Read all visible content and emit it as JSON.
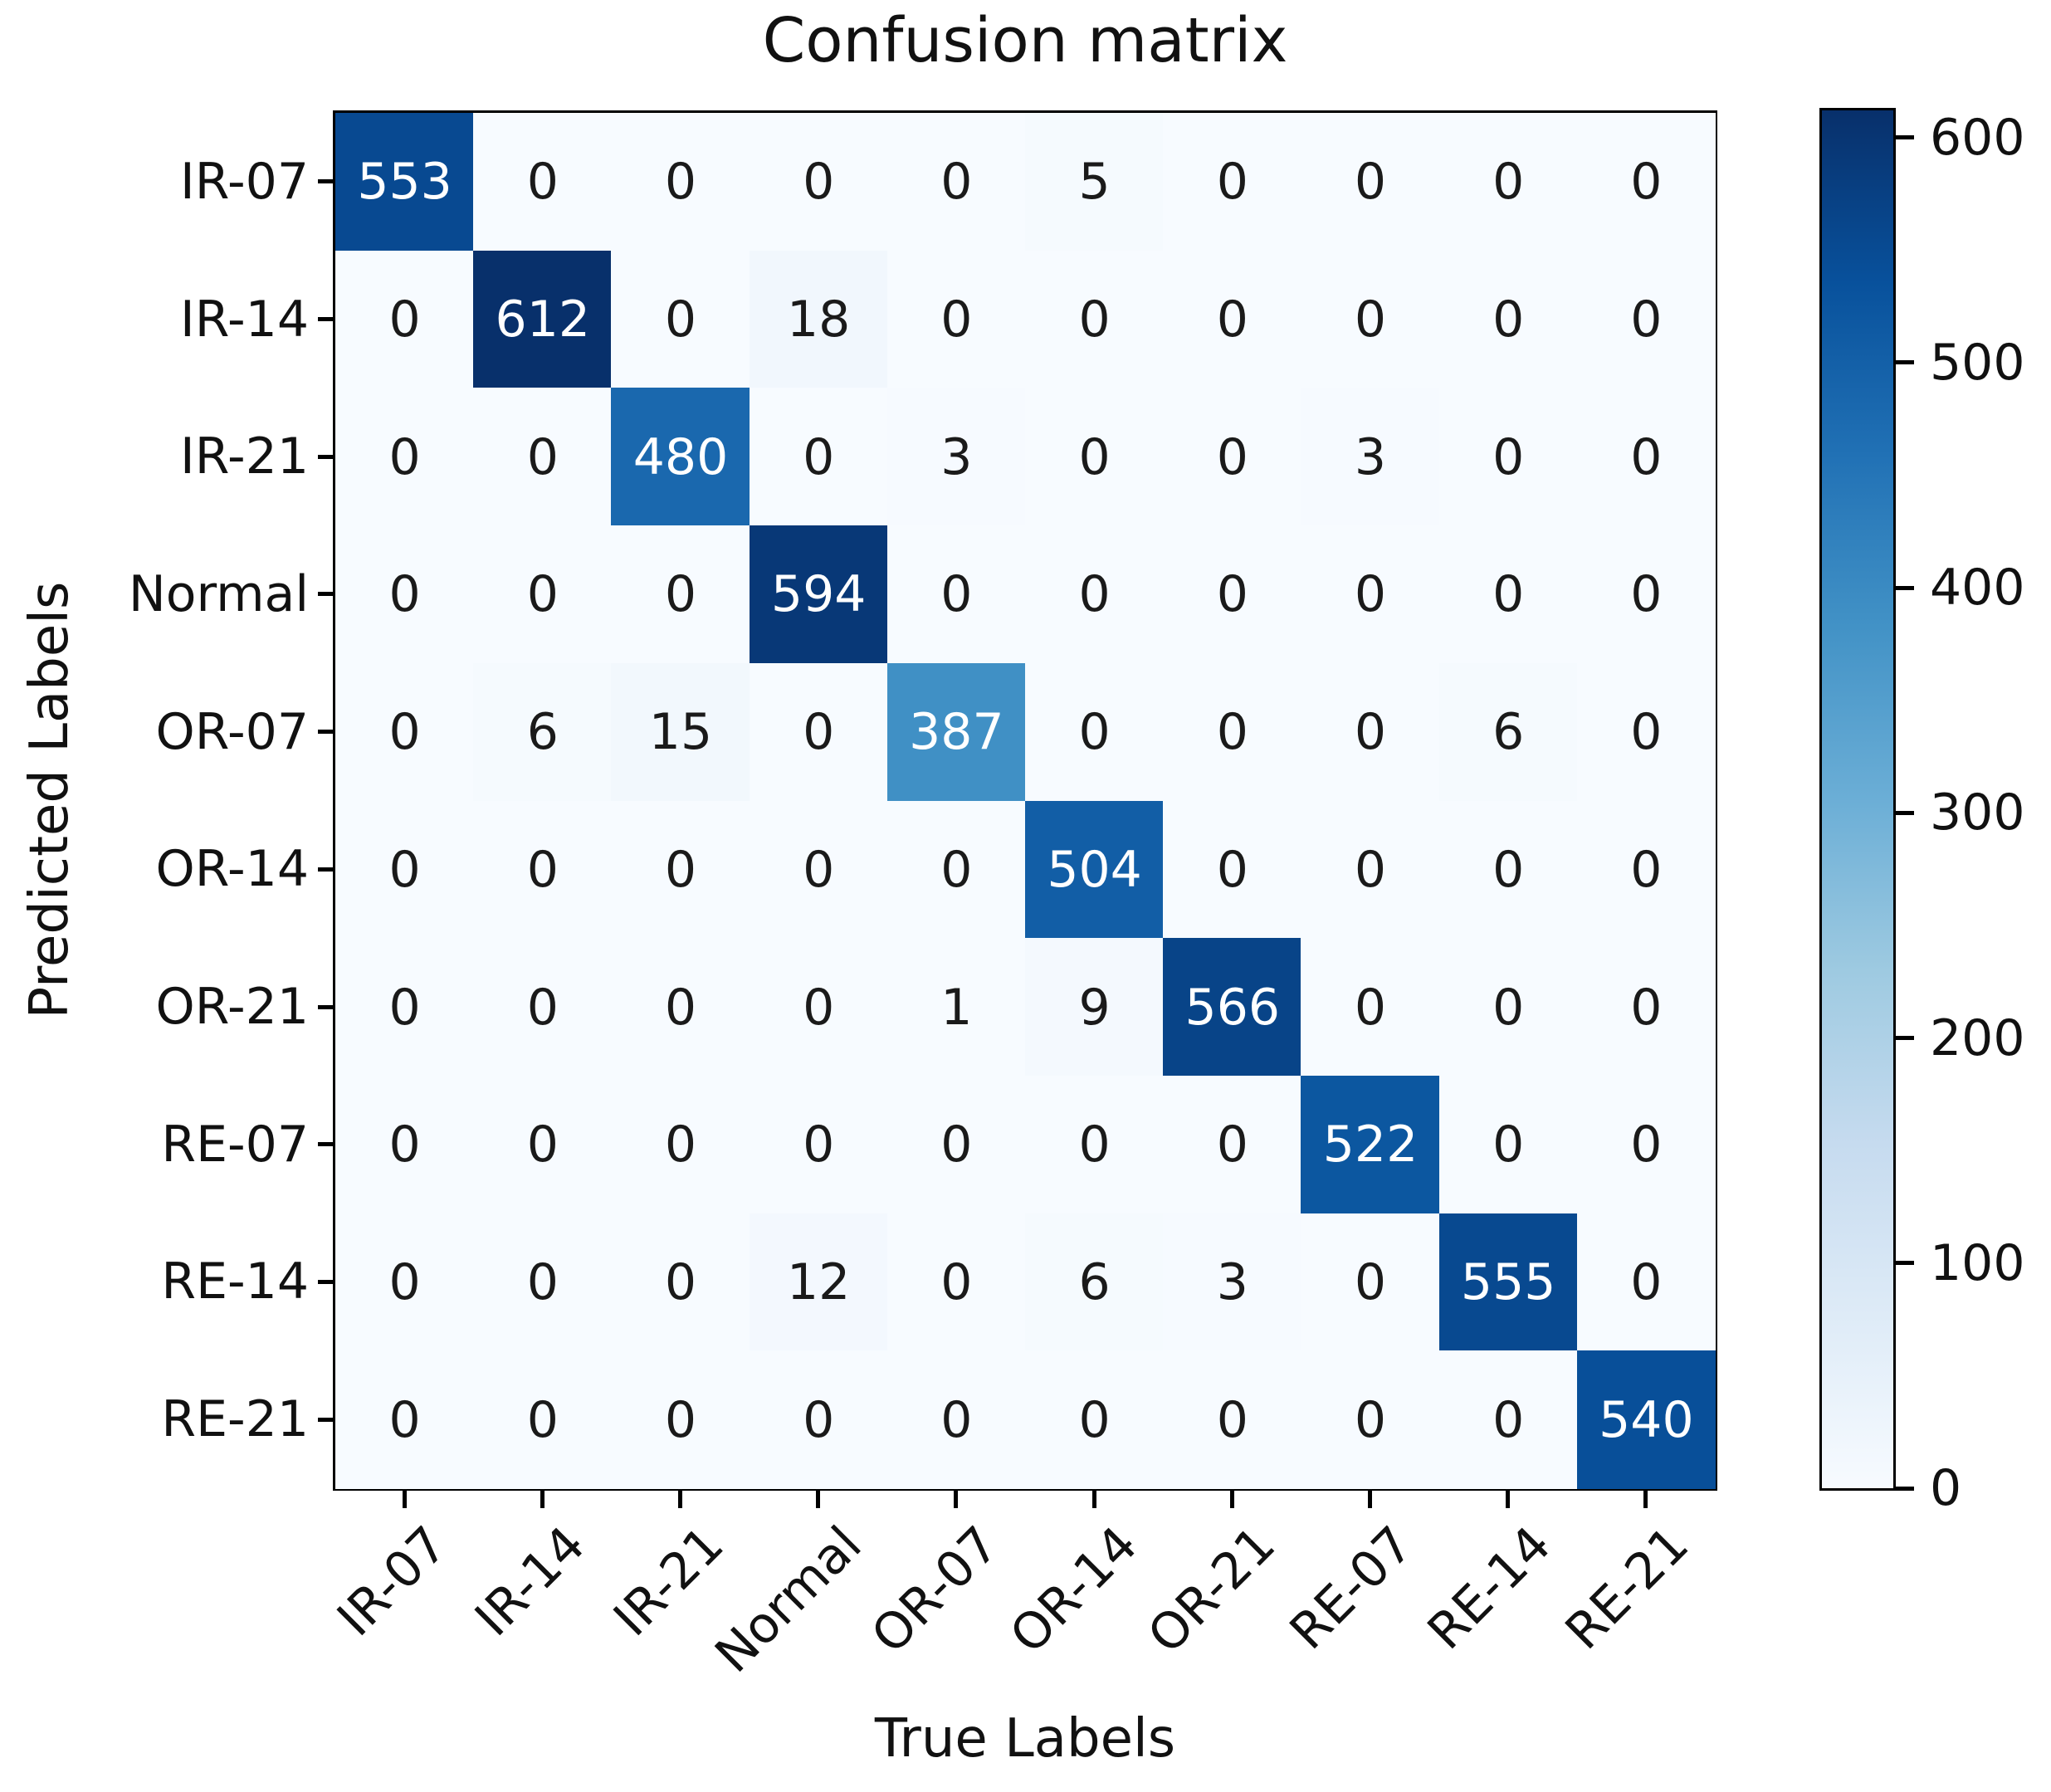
{
  "chart_data": {
    "type": "heatmap",
    "title": "Confusion matrix",
    "xlabel": "True Labels",
    "ylabel": "Predicted Labels",
    "x_tick_labels": [
      "IR-07",
      "IR-14",
      "IR-21",
      "Normal",
      "OR-07",
      "OR-14",
      "OR-21",
      "RE-07",
      "RE-14",
      "RE-21"
    ],
    "y_tick_labels": [
      "IR-07",
      "IR-14",
      "IR-21",
      "Normal",
      "OR-07",
      "OR-14",
      "OR-21",
      "RE-07",
      "RE-14",
      "RE-21"
    ],
    "matrix": [
      [
        553,
        0,
        0,
        0,
        0,
        5,
        0,
        0,
        0,
        0
      ],
      [
        0,
        612,
        0,
        18,
        0,
        0,
        0,
        0,
        0,
        0
      ],
      [
        0,
        0,
        480,
        0,
        3,
        0,
        0,
        3,
        0,
        0
      ],
      [
        0,
        0,
        0,
        594,
        0,
        0,
        0,
        0,
        0,
        0
      ],
      [
        0,
        6,
        15,
        0,
        387,
        0,
        0,
        0,
        6,
        0
      ],
      [
        0,
        0,
        0,
        0,
        0,
        504,
        0,
        0,
        0,
        0
      ],
      [
        0,
        0,
        0,
        0,
        1,
        9,
        566,
        0,
        0,
        0
      ],
      [
        0,
        0,
        0,
        0,
        0,
        0,
        0,
        522,
        0,
        0
      ],
      [
        0,
        0,
        0,
        12,
        0,
        6,
        3,
        0,
        555,
        0
      ],
      [
        0,
        0,
        0,
        0,
        0,
        0,
        0,
        0,
        0,
        540
      ]
    ],
    "vmin": 0,
    "vmax": 612,
    "colormap": "Blues",
    "colormap_stops": [
      "#f7fbff",
      "#deebf7",
      "#c6dbef",
      "#9ecae1",
      "#6baed6",
      "#4292c6",
      "#2171b5",
      "#08519c",
      "#08306b"
    ],
    "colorbar_ticks": [
      600,
      500,
      400,
      300,
      200,
      100,
      0
    ],
    "colorbar_position": "right",
    "text_color_threshold": 306,
    "cell_text_dark": "#1a1a1a",
    "cell_text_light": "#ffffff",
    "grid": false
  }
}
